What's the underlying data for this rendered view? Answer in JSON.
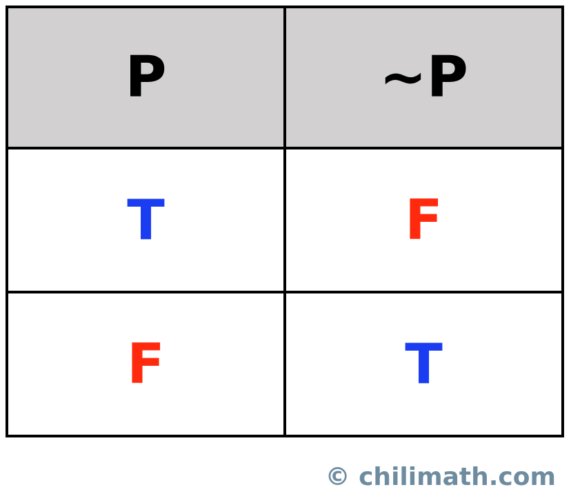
{
  "table": {
    "headers": [
      "P",
      "~P"
    ],
    "rows": [
      [
        "T",
        "F"
      ],
      [
        "F",
        "T"
      ]
    ]
  },
  "colors": {
    "true_value": "#1a3df2",
    "false_value": "#ff2a0d",
    "header_background": "#d2d0d1",
    "border": "#000000",
    "watermark": "#6e8ca0"
  },
  "watermark": "© chilimath.com"
}
